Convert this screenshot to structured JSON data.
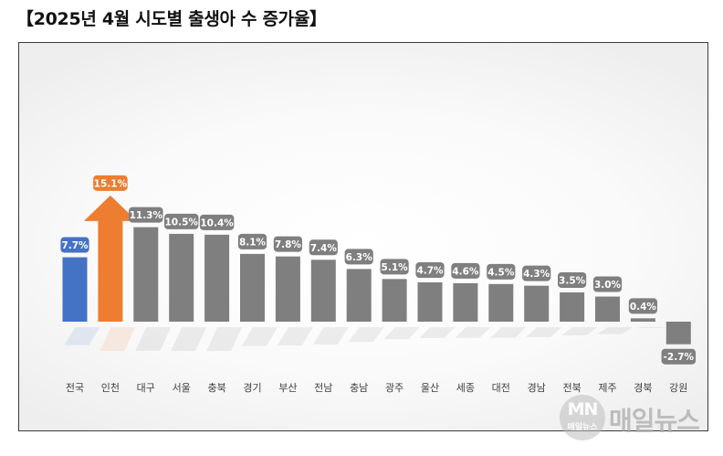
{
  "title": "【2025년 4월 시도별 출생아 수 증가율】",
  "watermark": {
    "logo": "MN",
    "logo_small": "매일뉴스",
    "text": "매일뉴스"
  },
  "chart_data": {
    "type": "bar",
    "title": "2025년 4월 시도별 출생아 수 증가율",
    "xlabel": "",
    "ylabel": "",
    "unit": "%",
    "categories": [
      "전국",
      "인천",
      "대구",
      "서울",
      "충북",
      "경기",
      "부산",
      "전남",
      "충남",
      "광주",
      "울산",
      "세종",
      "대전",
      "경남",
      "전북",
      "제주",
      "경북",
      "강원"
    ],
    "values": [
      7.7,
      15.1,
      11.3,
      10.5,
      10.4,
      8.1,
      7.8,
      7.4,
      6.3,
      5.1,
      4.7,
      4.6,
      4.5,
      4.3,
      3.5,
      3.0,
      0.4,
      -2.7
    ],
    "labels": [
      "7.7%",
      "15.1%",
      "11.3%",
      "10.5%",
      "10.4%",
      "8.1%",
      "7.8%",
      "7.4%",
      "6.3%",
      "5.1%",
      "4.7%",
      "4.6%",
      "4.5%",
      "4.3%",
      "3.5%",
      "3.0%",
      "0.4%",
      "-2.7%"
    ],
    "colors": [
      "#4472c4",
      "#ed7d31",
      "#7f7f7f",
      "#7f7f7f",
      "#7f7f7f",
      "#7f7f7f",
      "#7f7f7f",
      "#7f7f7f",
      "#7f7f7f",
      "#7f7f7f",
      "#7f7f7f",
      "#7f7f7f",
      "#7f7f7f",
      "#7f7f7f",
      "#7f7f7f",
      "#7f7f7f",
      "#7f7f7f",
      "#7f7f7f"
    ],
    "highlight": {
      "category": "인천",
      "marker": "up-arrow"
    },
    "grid": false,
    "legend": "none"
  }
}
